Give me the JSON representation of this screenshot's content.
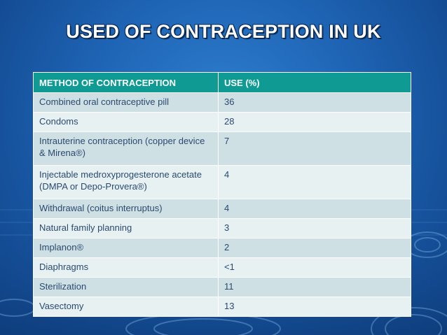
{
  "slide": {
    "title": "USED OF CONTRACEPTION IN UK"
  },
  "table": {
    "headers": [
      "METHOD OF CONTRACEPTION",
      "USE (%)"
    ],
    "rows": [
      {
        "method": "Combined oral contraceptive pill",
        "use": "36"
      },
      {
        "method": "Condoms",
        "use": "28"
      },
      {
        "method": "Intrauterine contraception (copper device & Mirena®)",
        "use": "7"
      },
      {
        "method": "Injectable medroxyprogesterone acetate (DMPA or Depo-Provera®)",
        "use": "4"
      },
      {
        "method": "Withdrawal (coitus interruptus)",
        "use": "4"
      },
      {
        "method": "Natural family planning",
        "use": "3"
      },
      {
        "method": "Implanon®",
        "use": "2"
      },
      {
        "method": "Diaphragms",
        "use": "<1"
      },
      {
        "method": "Sterilization",
        "use": "11"
      },
      {
        "method": "Vasectomy",
        "use": "13"
      }
    ]
  },
  "colors": {
    "background": "#1e63b3",
    "header": "#0f9a94",
    "row_odd": "#cfe0e4",
    "row_even": "#e8f1f2",
    "cell_text": "#2a4a70"
  }
}
